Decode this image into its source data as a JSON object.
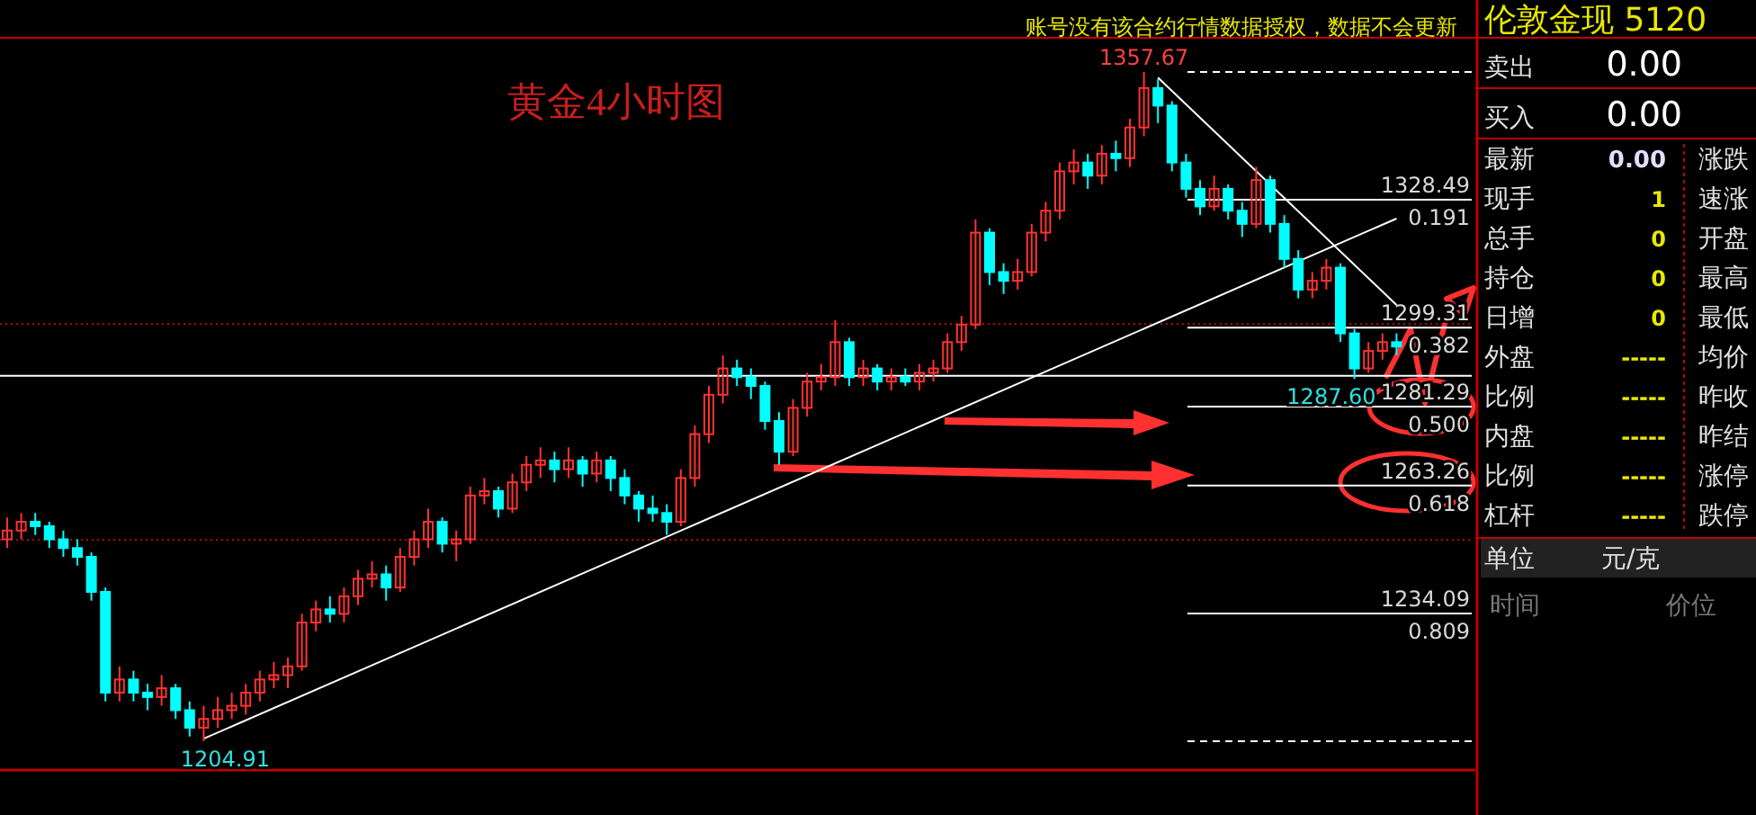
{
  "chart_data": [
    {
      "type": "candlestick",
      "title": "黄金4小时图",
      "categories": [
        null,
        null,
        null,
        null,
        null,
        null,
        null,
        null,
        null,
        null,
        null,
        null,
        null,
        null,
        null,
        null,
        null,
        null,
        null,
        null,
        null,
        null,
        null,
        null,
        null,
        null,
        null,
        null,
        null,
        null,
        null,
        null,
        null,
        null,
        null,
        null,
        null,
        null,
        null,
        null,
        null,
        null,
        null,
        null,
        null,
        null,
        null,
        null,
        null,
        null,
        null,
        null,
        null,
        null,
        null,
        null,
        null,
        null,
        null,
        null,
        null,
        null,
        null,
        null,
        null,
        null,
        null,
        null,
        null,
        null,
        null,
        null,
        null,
        null,
        null,
        null,
        null,
        null,
        null,
        null,
        null,
        null,
        null,
        null,
        null,
        null,
        null,
        null,
        null,
        null,
        null,
        null,
        null,
        null,
        null,
        null,
        null,
        null,
        null,
        null
      ],
      "ohlc": [
        [
          1251,
          1256,
          1249,
          1253
        ],
        [
          1253,
          1257,
          1251,
          1255
        ],
        [
          1255,
          1257,
          1252,
          1254
        ],
        [
          1254,
          1255,
          1249,
          1251
        ],
        [
          1251,
          1253,
          1247,
          1249
        ],
        [
          1249,
          1251,
          1245,
          1247
        ],
        [
          1247,
          1248,
          1237,
          1239
        ],
        [
          1239,
          1240,
          1214,
          1216
        ],
        [
          1216,
          1222,
          1214,
          1219
        ],
        [
          1219,
          1221,
          1214,
          1216
        ],
        [
          1216,
          1218,
          1212,
          1215
        ],
        [
          1215,
          1220,
          1213,
          1217
        ],
        [
          1217,
          1218,
          1210,
          1212
        ],
        [
          1212,
          1214,
          1206,
          1208
        ],
        [
          1208,
          1213,
          1204.91,
          1210
        ],
        [
          1210,
          1215,
          1208,
          1212
        ],
        [
          1212,
          1216,
          1210,
          1213
        ],
        [
          1213,
          1218,
          1211,
          1216
        ],
        [
          1216,
          1221,
          1214,
          1219
        ],
        [
          1219,
          1223,
          1217,
          1220
        ],
        [
          1220,
          1224,
          1217,
          1222
        ],
        [
          1222,
          1234,
          1221,
          1232
        ],
        [
          1232,
          1237,
          1230,
          1235
        ],
        [
          1235,
          1238,
          1232,
          1234
        ],
        [
          1234,
          1240,
          1232,
          1238
        ],
        [
          1238,
          1244,
          1236,
          1242
        ],
        [
          1242,
          1246,
          1240,
          1243
        ],
        [
          1243,
          1245,
          1237,
          1240
        ],
        [
          1240,
          1249,
          1239,
          1247
        ],
        [
          1247,
          1253,
          1245,
          1251
        ],
        [
          1251,
          1258,
          1249,
          1255
        ],
        [
          1255,
          1256,
          1248,
          1250
        ],
        [
          1250,
          1253,
          1246,
          1251
        ],
        [
          1251,
          1263,
          1250,
          1261
        ],
        [
          1261,
          1265,
          1259,
          1262
        ],
        [
          1262,
          1263,
          1256,
          1258
        ],
        [
          1258,
          1266,
          1257,
          1264
        ],
        [
          1264,
          1270,
          1262,
          1268
        ],
        [
          1268,
          1272,
          1265,
          1269
        ],
        [
          1269,
          1271,
          1264,
          1267
        ],
        [
          1267,
          1272,
          1265,
          1269
        ],
        [
          1269,
          1270,
          1263,
          1266
        ],
        [
          1266,
          1271,
          1264,
          1269
        ],
        [
          1269,
          1270,
          1262,
          1265
        ],
        [
          1265,
          1267,
          1259,
          1261
        ],
        [
          1261,
          1262,
          1255,
          1258
        ],
        [
          1258,
          1261,
          1255,
          1257
        ],
        [
          1257,
          1259,
          1252,
          1255
        ],
        [
          1255,
          1267,
          1254,
          1265
        ],
        [
          1265,
          1277,
          1263,
          1275
        ],
        [
          1275,
          1286,
          1273,
          1284
        ],
        [
          1284,
          1293,
          1282,
          1290
        ],
        [
          1290,
          1292,
          1286,
          1288
        ],
        [
          1288,
          1290,
          1283,
          1286
        ],
        [
          1286,
          1287,
          1276,
          1278
        ],
        [
          1278,
          1280,
          1268,
          1271
        ],
        [
          1271,
          1283,
          1270,
          1281
        ],
        [
          1281,
          1289,
          1279,
          1287
        ],
        [
          1287,
          1291,
          1285,
          1288
        ],
        [
          1288,
          1301,
          1286,
          1296
        ],
        [
          1296,
          1297,
          1286,
          1288
        ],
        [
          1288,
          1292,
          1286,
          1290
        ],
        [
          1290,
          1291,
          1285,
          1287
        ],
        [
          1287,
          1290,
          1285,
          1288
        ],
        [
          1288,
          1290,
          1286,
          1287
        ],
        [
          1287,
          1291,
          1285,
          1289
        ],
        [
          1289,
          1292,
          1287,
          1290
        ],
        [
          1290,
          1298,
          1289,
          1296
        ],
        [
          1296,
          1302,
          1294,
          1300
        ],
        [
          1300,
          1324,
          1299,
          1321
        ],
        [
          1321,
          1322,
          1309,
          1312
        ],
        [
          1312,
          1314,
          1307,
          1310
        ],
        [
          1310,
          1315,
          1308,
          1312
        ],
        [
          1312,
          1323,
          1311,
          1321
        ],
        [
          1321,
          1328,
          1319,
          1326
        ],
        [
          1326,
          1337,
          1324,
          1335
        ],
        [
          1335,
          1340,
          1332,
          1337
        ],
        [
          1337,
          1339,
          1331,
          1334
        ],
        [
          1334,
          1341,
          1332,
          1339
        ],
        [
          1339,
          1342,
          1335,
          1338
        ],
        [
          1338,
          1347,
          1336,
          1345
        ],
        [
          1345,
          1357.67,
          1343,
          1354
        ],
        [
          1354,
          1356,
          1346,
          1350
        ],
        [
          1350,
          1351,
          1335,
          1337
        ],
        [
          1337,
          1339,
          1329,
          1331
        ],
        [
          1331,
          1333,
          1325,
          1327
        ],
        [
          1327,
          1334,
          1326,
          1331
        ],
        [
          1331,
          1332,
          1324,
          1326
        ],
        [
          1326,
          1328,
          1320,
          1323
        ],
        [
          1323,
          1336,
          1322,
          1333
        ],
        [
          1333,
          1334,
          1321,
          1323
        ],
        [
          1323,
          1325,
          1313,
          1315
        ],
        [
          1315,
          1317,
          1306,
          1308
        ],
        [
          1308,
          1312,
          1306,
          1310
        ],
        [
          1310,
          1315,
          1308,
          1313
        ],
        [
          1313,
          1314,
          1296,
          1298
        ],
        [
          1298,
          1299,
          1287.6,
          1290
        ],
        [
          1290,
          1296,
          1289,
          1294
        ],
        [
          1294,
          1298,
          1292,
          1296
        ],
        [
          1296,
          1298,
          1293,
          1295
        ]
      ],
      "series": [
        {
          "type": "line",
          "color": "#ffffff",
          "values": [
            null,
            null,
            null,
            null,
            null,
            null,
            null,
            null,
            null,
            null,
            null,
            null,
            null,
            null,
            1205.5,
            null,
            null,
            null,
            null,
            null,
            null,
            null,
            null,
            null,
            null,
            null,
            null,
            null,
            null,
            null,
            null,
            null,
            null,
            null,
            null,
            null,
            null,
            null,
            null,
            null,
            null,
            null,
            null,
            null,
            null,
            null,
            null,
            null,
            null,
            null,
            null,
            null,
            null,
            null,
            null,
            null,
            null,
            null,
            null,
            null,
            null,
            null,
            null,
            null,
            null,
            null,
            null,
            null,
            null,
            null,
            null,
            null,
            null,
            null,
            null,
            null,
            null,
            null,
            null,
            null,
            null,
            null,
            null,
            null,
            null,
            null,
            null,
            null,
            null,
            null,
            null,
            null,
            null,
            null,
            null,
            null,
            null,
            null,
            null,
            1324.2
          ]
        },
        {
          "type": "line",
          "color": "#ffffff",
          "values": [
            null,
            null,
            null,
            null,
            null,
            null,
            null,
            null,
            null,
            null,
            null,
            null,
            null,
            null,
            null,
            null,
            null,
            null,
            null,
            null,
            null,
            null,
            null,
            null,
            null,
            null,
            null,
            null,
            null,
            null,
            null,
            null,
            null,
            null,
            null,
            null,
            null,
            null,
            null,
            null,
            null,
            null,
            null,
            null,
            null,
            null,
            null,
            null,
            null,
            null,
            null,
            null,
            null,
            null,
            null,
            null,
            null,
            null,
            null,
            null,
            null,
            null,
            null,
            null,
            null,
            null,
            null,
            null,
            null,
            null,
            null,
            null,
            null,
            null,
            null,
            null,
            null,
            null,
            null,
            null,
            null,
            null,
            1356.4,
            null,
            null,
            null,
            null,
            null,
            null,
            null,
            null,
            null,
            null,
            null,
            null,
            null,
            null,
            null,
            null,
            1304.5
          ]
        }
      ],
      "ref_lines": [
        {
          "axis": "y",
          "value": 1357.67,
          "color": "#ffffff",
          "line_style": "dashed"
        },
        {
          "axis": "y",
          "value": 1328.49,
          "label": "1328.49",
          "color": "#ffffff"
        },
        {
          "axis": "y",
          "value": 1299.31,
          "label": "1299.31",
          "color": "#ffffff"
        },
        {
          "axis": "y",
          "value": 1281.29,
          "label": "1281.29",
          "color": "#ffffff"
        },
        {
          "axis": "y",
          "value": 1263.26,
          "label": "1263.26",
          "color": "#ffffff"
        },
        {
          "axis": "y",
          "value": 1234.09,
          "label": "1234.09",
          "color": "#ffffff"
        },
        {
          "axis": "y",
          "value": 1204.91,
          "color": "#ffffff",
          "line_style": "dashed"
        },
        {
          "axis": "y",
          "value": 1288.3,
          "color": "#ffffff"
        },
        {
          "axis": "y",
          "value": 1300.2,
          "color": "#c00000",
          "line_style": "dotted"
        },
        {
          "axis": "y",
          "value": 1250.9,
          "color": "#c00000",
          "line_style": "dotted"
        }
      ],
      "annotations": [
        "账号没有该合约行情数据授权，数据不会更新",
        {
          "text": "1357.67",
          "y": 1357.67
        },
        "1204.91",
        {
          "text": "1287.60",
          "y": 1287.6
        },
        {
          "text": "0.191",
          "y": 1328.49
        },
        {
          "text": "0.382",
          "y": 1299.31
        },
        {
          "text": "0.500",
          "y": 1281.29
        },
        {
          "text": "0.618",
          "y": 1263.26
        },
        {
          "text": "0.809",
          "y": 1234.09
        }
      ]
    },
    {
      "type": "other",
      "title": "伦敦金现 5120",
      "annotations": [
        "卖出",
        "0.00",
        "买入",
        "0.00",
        "最新",
        "0.00",
        "涨跌",
        "现手",
        "1",
        "速涨",
        "总手",
        "0",
        "开盘",
        "持仓",
        "0",
        "最高",
        "日增",
        "0",
        "最低",
        "外盘",
        "-----",
        "均价",
        "比例",
        "-----",
        "昨收",
        "内盘",
        "-----",
        "昨结",
        "比例",
        "-----",
        "涨停",
        "杠杆",
        "-----",
        "跌停",
        "单位",
        "元/克",
        "时间",
        "价位"
      ]
    }
  ]
}
